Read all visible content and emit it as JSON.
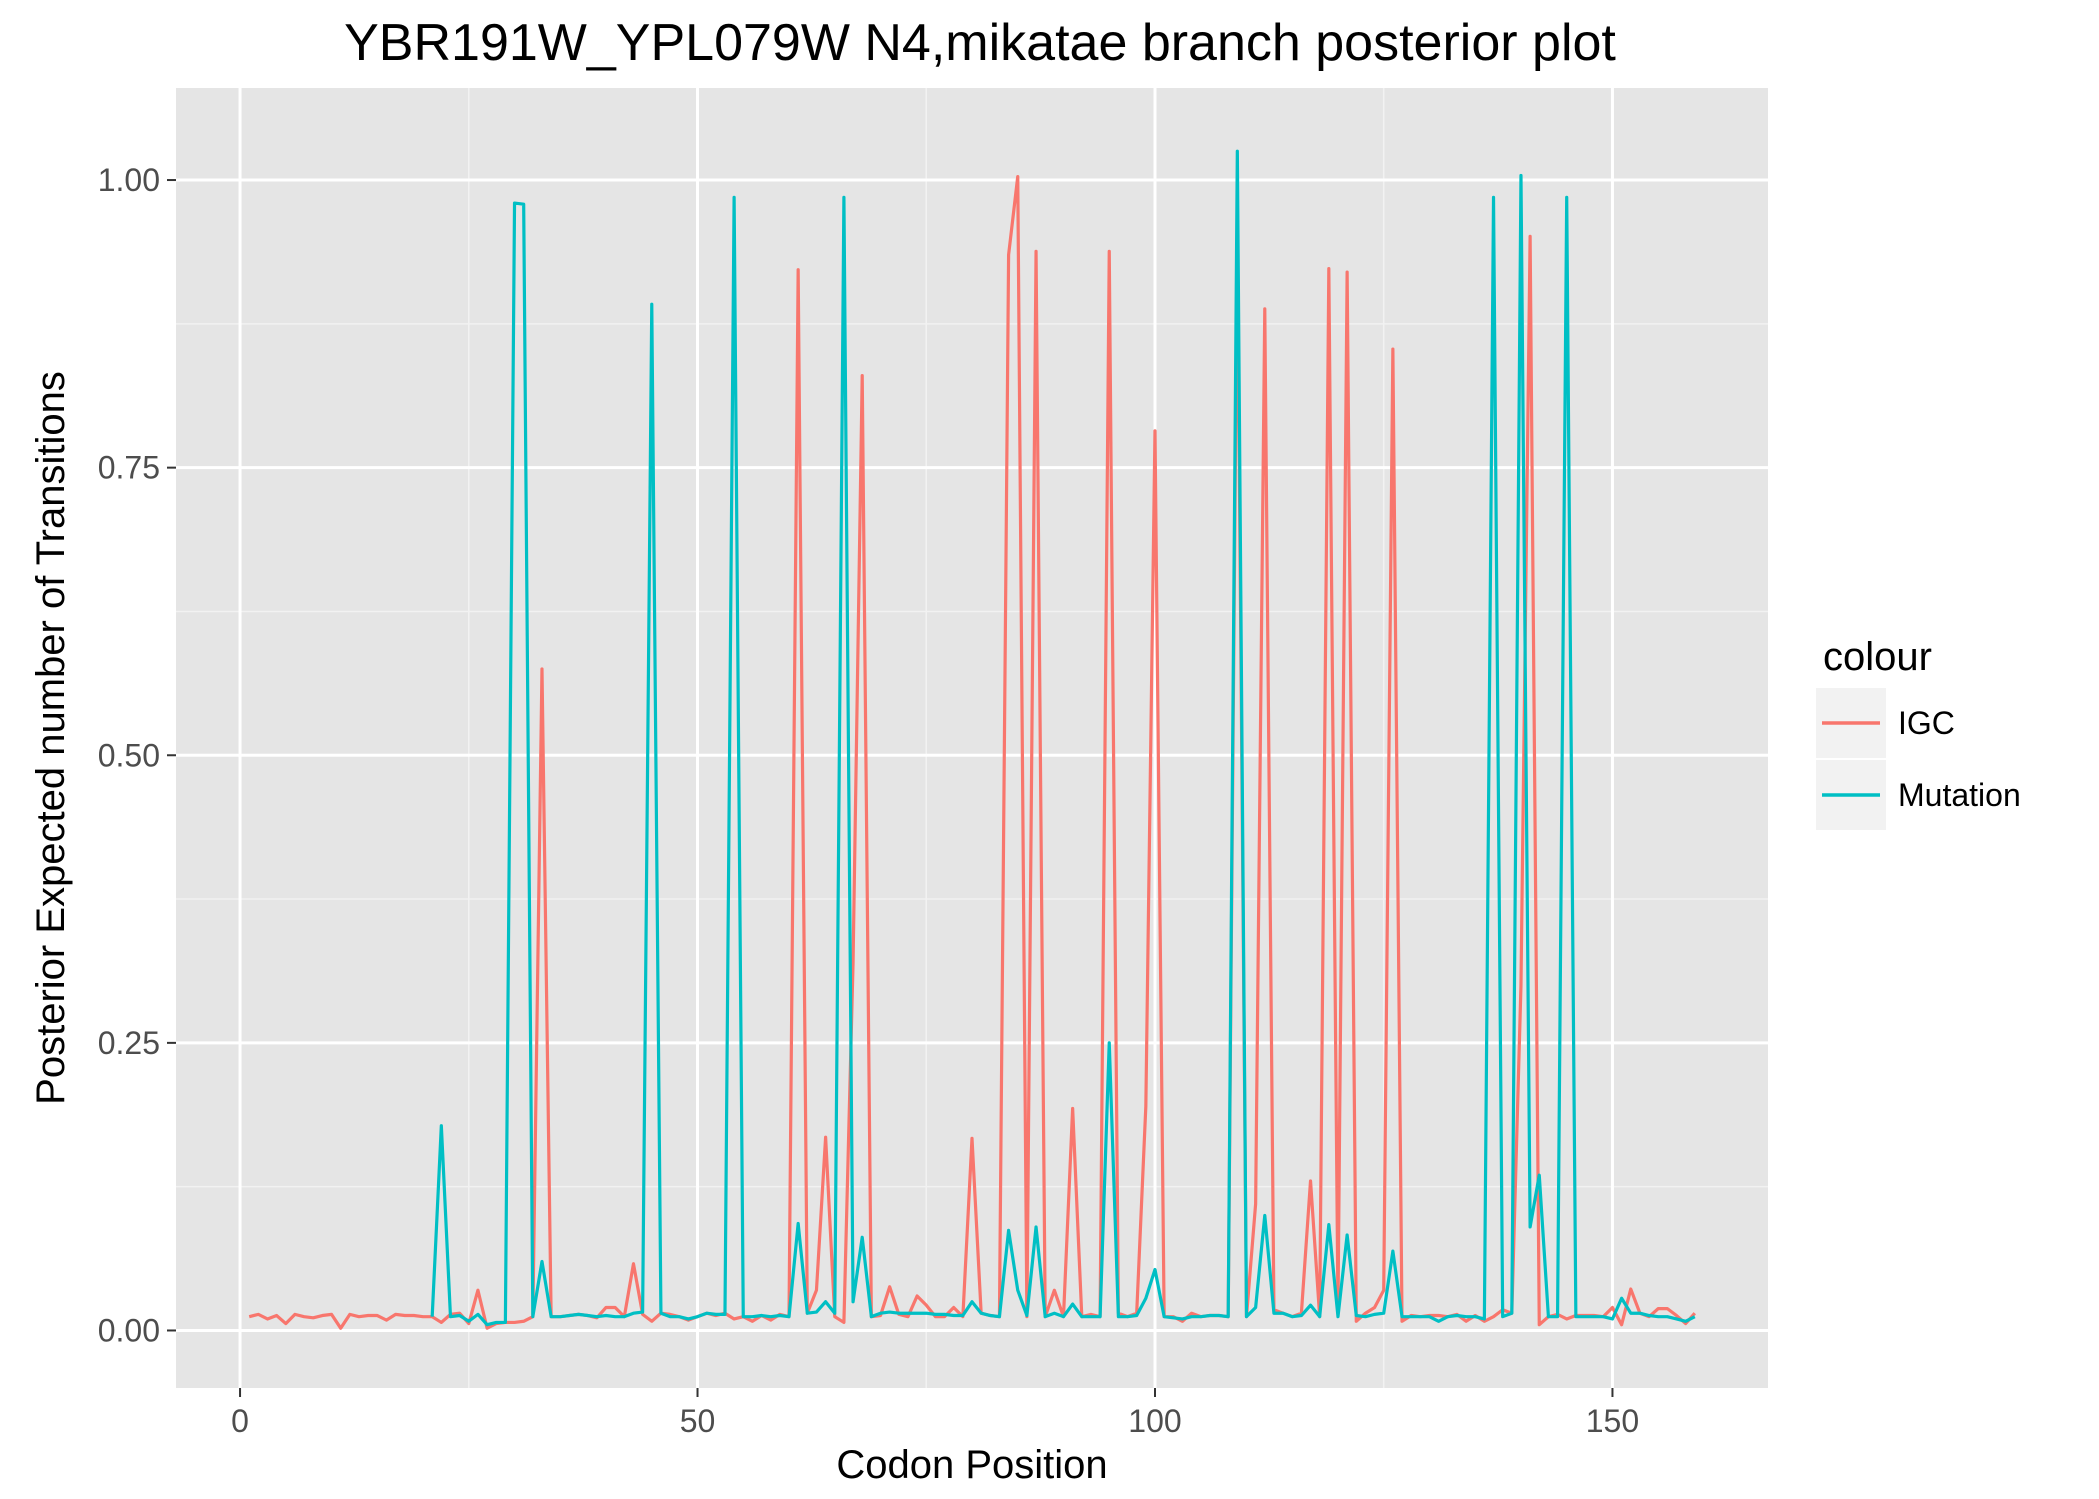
{
  "chart_data": {
    "type": "line",
    "title": "YBR191W_YPL079W N4,mikatae branch posterior plot",
    "xlabel": "Codon Position",
    "ylabel": "Posterior Expected number of Transitions",
    "xlim": [
      -7,
      167
    ],
    "ylim": [
      -0.05,
      1.08
    ],
    "x_ticks": [
      0,
      50,
      100,
      150
    ],
    "x_tick_labels": [
      "0",
      "50",
      "100",
      "150"
    ],
    "y_ticks": [
      0,
      0.25,
      0.5,
      0.75,
      1.0
    ],
    "y_tick_labels": [
      "0.00",
      "0.25",
      "0.50",
      "0.75",
      "1.00"
    ],
    "grid": true,
    "background": "#E5E5E5",
    "legend": {
      "title": "colour",
      "position": "right",
      "entries": [
        {
          "label": "IGC",
          "color": "#F8766D"
        },
        {
          "label": "Mutation",
          "color": "#00BFC4"
        }
      ]
    },
    "series": [
      {
        "name": "IGC",
        "color": "#F8766D",
        "x": [
          1,
          2,
          3,
          4,
          5,
          6,
          7,
          8,
          9,
          10,
          11,
          12,
          13,
          14,
          15,
          16,
          17,
          18,
          19,
          20,
          21,
          22,
          23,
          24,
          25,
          26,
          27,
          28,
          29,
          30,
          31,
          32,
          33,
          34,
          35,
          36,
          37,
          38,
          39,
          40,
          41,
          42,
          43,
          44,
          45,
          46,
          47,
          48,
          49,
          50,
          51,
          52,
          53,
          54,
          55,
          56,
          57,
          58,
          59,
          60,
          61,
          62,
          63,
          64,
          65,
          66,
          67,
          68,
          69,
          70,
          71,
          72,
          73,
          74,
          75,
          76,
          77,
          78,
          79,
          80,
          81,
          82,
          83,
          84,
          85,
          86,
          87,
          88,
          89,
          90,
          91,
          92,
          93,
          94,
          95,
          96,
          97,
          98,
          99,
          100,
          101,
          102,
          103,
          104,
          105,
          106,
          107,
          108,
          109,
          110,
          111,
          112,
          113,
          114,
          115,
          116,
          117,
          118,
          119,
          120,
          121,
          122,
          123,
          124,
          125,
          126,
          127,
          128,
          129,
          130,
          131,
          132,
          133,
          134,
          135,
          136,
          137,
          138,
          139,
          140,
          141,
          142,
          143,
          144,
          145,
          146,
          147,
          148,
          149,
          150,
          151,
          152,
          153,
          154,
          155,
          156,
          157,
          158,
          159
        ],
        "values": [
          0.012,
          0.014,
          0.01,
          0.013,
          0.006,
          0.014,
          0.012,
          0.011,
          0.013,
          0.014,
          0.002,
          0.014,
          0.012,
          0.013,
          0.013,
          0.009,
          0.014,
          0.013,
          0.013,
          0.012,
          0.012,
          0.007,
          0.014,
          0.015,
          0.006,
          0.035,
          0.002,
          0.006,
          0.007,
          0.007,
          0.008,
          0.012,
          0.575,
          0.012,
          0.012,
          0.013,
          0.014,
          0.013,
          0.011,
          0.02,
          0.02,
          0.012,
          0.058,
          0.014,
          0.008,
          0.015,
          0.014,
          0.012,
          0.009,
          0.012,
          0.015,
          0.013,
          0.015,
          0.01,
          0.012,
          0.008,
          0.013,
          0.009,
          0.014,
          0.012,
          0.922,
          0.015,
          0.035,
          0.168,
          0.012,
          0.007,
          0.32,
          0.83,
          0.012,
          0.013,
          0.038,
          0.014,
          0.012,
          0.03,
          0.022,
          0.012,
          0.012,
          0.02,
          0.012,
          0.167,
          0.015,
          0.013,
          0.012,
          0.935,
          1.003,
          0.012,
          0.938,
          0.012,
          0.035,
          0.012,
          0.193,
          0.012,
          0.014,
          0.012,
          0.938,
          0.015,
          0.012,
          0.015,
          0.195,
          0.782,
          0.012,
          0.012,
          0.008,
          0.015,
          0.012,
          0.013,
          0.013,
          0.012,
          0.955,
          0.012,
          0.11,
          0.888,
          0.018,
          0.015,
          0.012,
          0.015,
          0.13,
          0.012,
          0.923,
          0.018,
          0.92,
          0.008,
          0.015,
          0.02,
          0.035,
          0.853,
          0.008,
          0.013,
          0.012,
          0.013,
          0.013,
          0.012,
          0.014,
          0.008,
          0.013,
          0.008,
          0.012,
          0.018,
          0.015,
          0.3,
          0.951,
          0.005,
          0.012,
          0.014,
          0.01,
          0.013,
          0.013,
          0.013,
          0.012,
          0.02,
          0.005,
          0.036,
          0.015,
          0.012,
          0.019,
          0.019,
          0.013,
          0.006,
          0.015
        ]
      },
      {
        "name": "Mutation",
        "color": "#00BFC4",
        "x": [
          21,
          22,
          23,
          24,
          25,
          26,
          27,
          28,
          29,
          30,
          31,
          32,
          33,
          34,
          35,
          36,
          37,
          38,
          39,
          40,
          41,
          42,
          43,
          44,
          45,
          46,
          47,
          48,
          49,
          50,
          51,
          52,
          53,
          54,
          55,
          56,
          57,
          58,
          59,
          60,
          61,
          62,
          63,
          64,
          65,
          66,
          67,
          68,
          69,
          70,
          71,
          72,
          73,
          74,
          75,
          76,
          77,
          78,
          79,
          80,
          81,
          82,
          83,
          84,
          85,
          86,
          87,
          88,
          89,
          90,
          91,
          92,
          93,
          94,
          95,
          96,
          97,
          98,
          99,
          100,
          101,
          102,
          103,
          104,
          105,
          106,
          107,
          108,
          109,
          110,
          111,
          112,
          113,
          114,
          115,
          116,
          117,
          118,
          119,
          120,
          121,
          122,
          123,
          124,
          125,
          126,
          127,
          128,
          129,
          130,
          131,
          132,
          133,
          134,
          135,
          136,
          137,
          138,
          139,
          140,
          141,
          142,
          143,
          144,
          145,
          146,
          147,
          148,
          149,
          150,
          151,
          152,
          153,
          154,
          155,
          156,
          157,
          158,
          159
        ],
        "values": [
          0.012,
          0.178,
          0.012,
          0.013,
          0.008,
          0.014,
          0.005,
          0.007,
          0.007,
          0.98,
          0.979,
          0.012,
          0.06,
          0.012,
          0.012,
          0.013,
          0.014,
          0.013,
          0.012,
          0.013,
          0.012,
          0.012,
          0.015,
          0.016,
          0.892,
          0.015,
          0.012,
          0.012,
          0.01,
          0.012,
          0.015,
          0.014,
          0.014,
          0.985,
          0.012,
          0.012,
          0.013,
          0.012,
          0.013,
          0.012,
          0.093,
          0.015,
          0.016,
          0.025,
          0.015,
          0.985,
          0.025,
          0.081,
          0.012,
          0.015,
          0.016,
          0.015,
          0.015,
          0.015,
          0.015,
          0.014,
          0.014,
          0.013,
          0.013,
          0.025,
          0.015,
          0.013,
          0.012,
          0.087,
          0.035,
          0.013,
          0.09,
          0.012,
          0.015,
          0.012,
          0.023,
          0.012,
          0.012,
          0.012,
          0.25,
          0.012,
          0.012,
          0.013,
          0.028,
          0.053,
          0.012,
          0.011,
          0.01,
          0.012,
          0.012,
          0.013,
          0.013,
          0.012,
          1.025,
          0.012,
          0.02,
          0.1,
          0.015,
          0.015,
          0.012,
          0.013,
          0.022,
          0.012,
          0.092,
          0.012,
          0.083,
          0.013,
          0.012,
          0.014,
          0.015,
          0.069,
          0.012,
          0.012,
          0.012,
          0.012,
          0.008,
          0.012,
          0.013,
          0.012,
          0.012,
          0.01,
          0.985,
          0.012,
          0.015,
          1.004,
          0.09,
          0.135,
          0.012,
          0.012,
          0.985,
          0.012,
          0.012,
          0.012,
          0.012,
          0.01,
          0.028,
          0.015,
          0.015,
          0.013,
          0.012,
          0.012,
          0.01,
          0.008,
          0.012
        ]
      }
    ]
  }
}
